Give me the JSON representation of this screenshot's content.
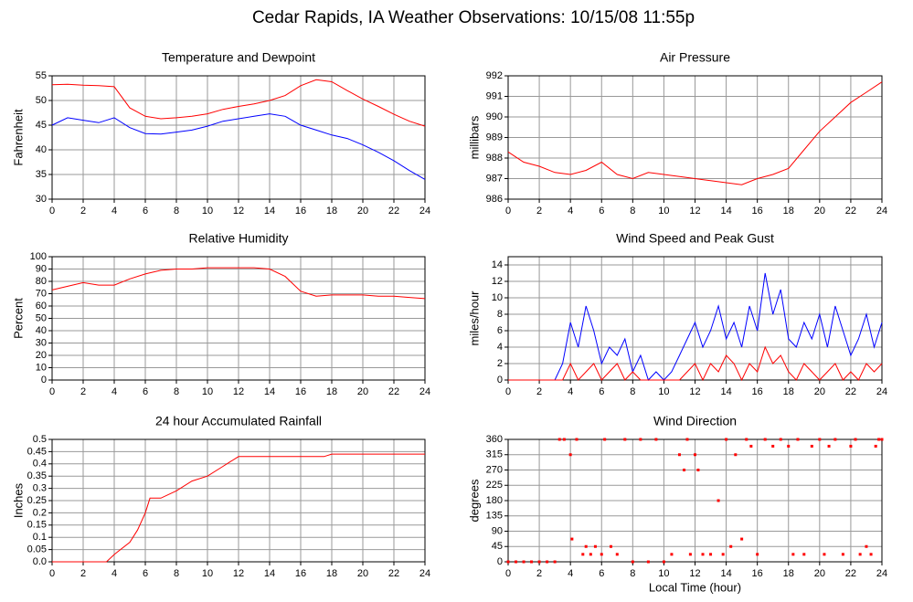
{
  "title": "Cedar Rapids, IA Weather Observations: 10/15/08 11:55p",
  "chart_data": [
    {
      "type": "line",
      "title": "Temperature and Dewpoint",
      "ylabel": "Fahrenheit",
      "x": [
        0,
        1,
        2,
        3,
        4,
        5,
        6,
        7,
        8,
        9,
        10,
        11,
        12,
        13,
        14,
        15,
        16,
        17,
        18,
        19,
        20,
        21,
        22,
        23,
        24
      ],
      "series": [
        {
          "color": "#ff0000",
          "values": [
            53.2,
            53.3,
            53.1,
            53,
            52.8,
            48.5,
            46.8,
            46.3,
            46.5,
            46.8,
            47.3,
            48.2,
            48.8,
            49.3,
            50,
            51,
            53,
            54.2,
            53.8,
            52,
            50.3,
            48.8,
            47.2,
            45.8,
            44.8
          ]
        },
        {
          "color": "#0000ff",
          "values": [
            45,
            46.5,
            46,
            45.5,
            46.5,
            44.5,
            43.3,
            43.2,
            43.6,
            44,
            44.8,
            45.8,
            46.3,
            46.8,
            47.3,
            46.8,
            45,
            44,
            43,
            42.3,
            41,
            39.5,
            37.8,
            35.8,
            34
          ]
        }
      ],
      "xlim": [
        0,
        24
      ],
      "xticks": [
        0,
        2,
        4,
        6,
        8,
        10,
        12,
        14,
        16,
        18,
        20,
        22,
        24
      ],
      "ylim": [
        30,
        55
      ],
      "yticks": [
        30,
        35,
        40,
        45,
        50,
        55
      ],
      "grid": true
    },
    {
      "type": "line",
      "title": "Air Pressure",
      "ylabel": "millibars",
      "x": [
        0,
        1,
        2,
        3,
        4,
        5,
        6,
        7,
        8,
        9,
        10,
        11,
        12,
        13,
        14,
        15,
        16,
        17,
        18,
        19,
        20,
        21,
        22,
        23,
        24
      ],
      "series": [
        {
          "color": "#ff0000",
          "values": [
            988.3,
            987.8,
            987.6,
            987.3,
            987.2,
            987.4,
            987.8,
            987.2,
            987,
            987.3,
            987.2,
            987.1,
            987,
            986.9,
            986.8,
            986.7,
            987,
            987.2,
            987.5,
            988.4,
            989.3,
            990,
            990.7,
            991.2,
            991.7
          ]
        }
      ],
      "xlim": [
        0,
        24
      ],
      "xticks": [
        0,
        2,
        4,
        6,
        8,
        10,
        12,
        14,
        16,
        18,
        20,
        22,
        24
      ],
      "ylim": [
        986,
        992
      ],
      "yticks": [
        986,
        987,
        988,
        989,
        990,
        991,
        992
      ],
      "grid": true
    },
    {
      "type": "line",
      "title": "Relative Humidity",
      "ylabel": "Percent",
      "x": [
        0,
        1,
        2,
        3,
        4,
        5,
        6,
        7,
        8,
        9,
        10,
        11,
        12,
        13,
        14,
        15,
        16,
        17,
        18,
        19,
        20,
        21,
        22,
        23,
        24
      ],
      "series": [
        {
          "color": "#ff0000",
          "values": [
            73,
            76,
            79,
            77,
            77,
            82,
            86,
            89,
            90,
            90,
            91,
            91,
            91,
            91,
            90,
            84,
            72,
            68,
            69,
            69,
            69,
            68,
            68,
            67,
            66
          ]
        }
      ],
      "xlim": [
        0,
        24
      ],
      "xticks": [
        0,
        2,
        4,
        6,
        8,
        10,
        12,
        14,
        16,
        18,
        20,
        22,
        24
      ],
      "ylim": [
        0,
        100
      ],
      "yticks": [
        0,
        10,
        20,
        30,
        40,
        50,
        60,
        70,
        80,
        90,
        100
      ],
      "grid": true
    },
    {
      "type": "line",
      "title": "Wind Speed and Peak Gust",
      "ylabel": "miles/hour",
      "x": [
        0,
        0.5,
        1,
        1.5,
        2,
        2.5,
        3,
        3.5,
        4,
        4.5,
        5,
        5.5,
        6,
        6.5,
        7,
        7.5,
        8,
        8.5,
        9,
        9.5,
        10,
        10.5,
        11,
        11.5,
        12,
        12.5,
        13,
        13.5,
        14,
        14.5,
        15,
        15.5,
        16,
        16.5,
        17,
        17.5,
        18,
        18.5,
        19,
        19.5,
        20,
        20.5,
        21,
        21.5,
        22,
        22.5,
        23,
        23.5,
        24
      ],
      "series": [
        {
          "color": "#0000ff",
          "values": [
            0,
            0,
            0,
            0,
            0,
            0,
            0,
            2,
            7,
            4,
            9,
            6,
            2,
            4,
            3,
            5,
            1,
            3,
            0,
            1,
            0,
            1,
            3,
            5,
            7,
            4,
            6,
            9,
            5,
            7,
            4,
            9,
            6,
            13,
            8,
            11,
            5,
            4,
            7,
            5,
            8,
            4,
            9,
            6,
            3,
            5,
            8,
            4,
            7
          ]
        },
        {
          "color": "#ff0000",
          "values": [
            0,
            0,
            0,
            0,
            0,
            0,
            0,
            0,
            2,
            0,
            1,
            2,
            0,
            1,
            2,
            0,
            1,
            0,
            0,
            0,
            0,
            0,
            0,
            1,
            2,
            0,
            2,
            1,
            3,
            2,
            0,
            2,
            1,
            4,
            2,
            3,
            1,
            0,
            2,
            1,
            0,
            1,
            2,
            0,
            1,
            0,
            2,
            1,
            2
          ]
        }
      ],
      "xlim": [
        0,
        24
      ],
      "xticks": [
        0,
        2,
        4,
        6,
        8,
        10,
        12,
        14,
        16,
        18,
        20,
        22,
        24
      ],
      "ylim": [
        0,
        15
      ],
      "yticks": [
        0,
        2,
        4,
        6,
        8,
        10,
        12,
        14
      ],
      "grid": true
    },
    {
      "type": "line",
      "title": "24 hour Accumulated Rainfall",
      "ylabel": "Inches",
      "x": [
        0,
        3.5,
        4,
        5,
        5.5,
        6,
        6.3,
        6.5,
        7,
        8,
        9,
        10,
        11,
        11.5,
        12,
        12.3,
        14,
        17.5,
        18,
        24
      ],
      "series": [
        {
          "color": "#ff0000",
          "values": [
            0,
            0,
            0.03,
            0.08,
            0.13,
            0.2,
            0.26,
            0.26,
            0.26,
            0.29,
            0.33,
            0.35,
            0.39,
            0.41,
            0.43,
            0.43,
            0.43,
            0.43,
            0.44,
            0.44
          ]
        }
      ],
      "xlim": [
        0,
        24
      ],
      "xticks": [
        0,
        2,
        4,
        6,
        8,
        10,
        12,
        14,
        16,
        18,
        20,
        22,
        24
      ],
      "ylim": [
        0,
        0.5
      ],
      "yticks": [
        {
          "value": 0,
          "label": "0.0"
        },
        0.05,
        0.1,
        0.15,
        0.2,
        0.25,
        0.3,
        0.35,
        0.4,
        0.45,
        0.5
      ],
      "grid": true
    },
    {
      "type": "scatter",
      "title": "Wind Direction",
      "ylabel": "degrees",
      "xlabel": "Local Time (hour)",
      "x": [
        0,
        0.5,
        1,
        1.5,
        2,
        2.5,
        3,
        3.3,
        3.6,
        4,
        4.1,
        4.4,
        4.8,
        5,
        5.3,
        5.6,
        6,
        6.2,
        6.6,
        7,
        7.5,
        8,
        8.5,
        9,
        9.5,
        10,
        10.5,
        11,
        11.3,
        11.5,
        11.7,
        12,
        12.2,
        12.5,
        13,
        13.5,
        13.8,
        14,
        14.3,
        14.6,
        15,
        15.3,
        15.6,
        16,
        16.5,
        17,
        17.5,
        18,
        18.3,
        18.6,
        19,
        19.5,
        20,
        20.3,
        20.6,
        21,
        21.5,
        22,
        22.3,
        22.6,
        23,
        23.3,
        23.6,
        23.8,
        24
      ],
      "series": [
        {
          "color": "#ff0000",
          "values": [
            0,
            0,
            0,
            0,
            0,
            0,
            0,
            360,
            360,
            315,
            67,
            360,
            22,
            45,
            22,
            45,
            22,
            360,
            45,
            22,
            360,
            0,
            360,
            0,
            360,
            0,
            22,
            315,
            270,
            360,
            22,
            315,
            270,
            22,
            22,
            180,
            22,
            360,
            45,
            315,
            67,
            360,
            340,
            22,
            360,
            340,
            360,
            340,
            22,
            360,
            22,
            340,
            360,
            22,
            340,
            360,
            22,
            340,
            360,
            22,
            45,
            22,
            340,
            360,
            360
          ]
        }
      ],
      "xlim": [
        0,
        24
      ],
      "xticks": [
        0,
        2,
        4,
        6,
        8,
        10,
        12,
        14,
        16,
        18,
        20,
        22,
        24
      ],
      "ylim": [
        0,
        360
      ],
      "yticks": [
        0,
        45,
        90,
        135,
        180,
        225,
        270,
        315,
        360
      ],
      "grid": true
    }
  ]
}
